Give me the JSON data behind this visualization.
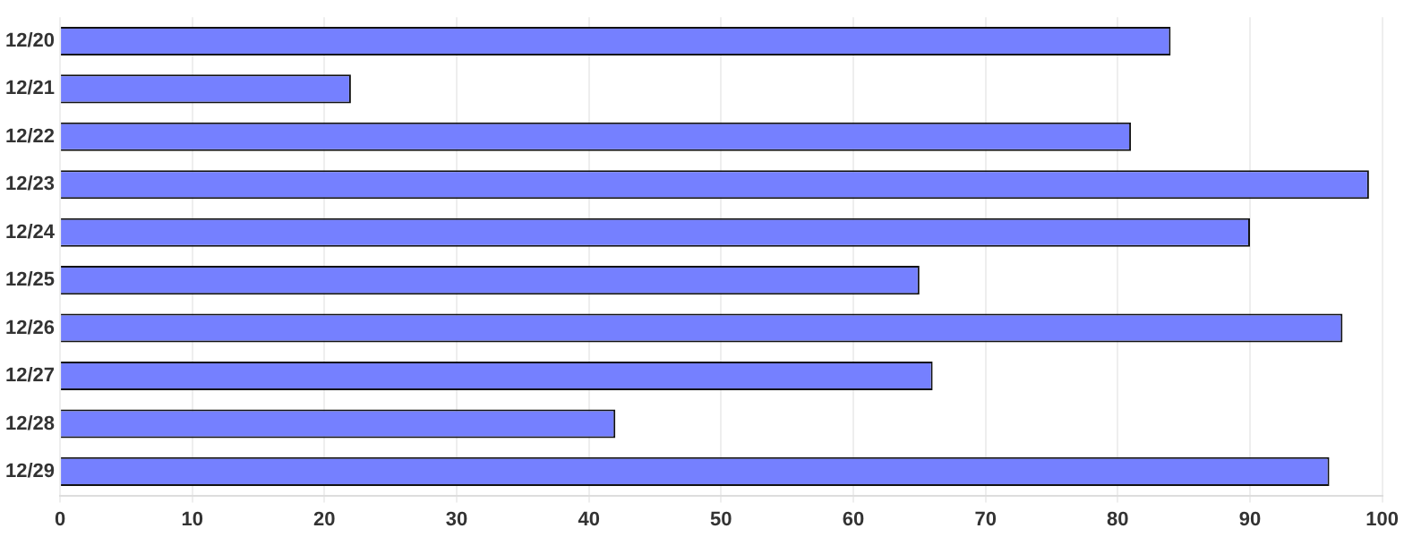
{
  "chart_data": {
    "type": "bar",
    "orientation": "horizontal",
    "categories": [
      "12/20",
      "12/21",
      "12/22",
      "12/23",
      "12/24",
      "12/25",
      "12/26",
      "12/27",
      "12/28",
      "12/29"
    ],
    "values": [
      84,
      22,
      81,
      99,
      90,
      65,
      97,
      66,
      42,
      96
    ],
    "color": "#7580ff",
    "xlim": [
      0,
      100
    ],
    "xticks": [
      0,
      10,
      20,
      30,
      40,
      50,
      60,
      70,
      80,
      90,
      100
    ],
    "grid": "x",
    "legend": false
  }
}
